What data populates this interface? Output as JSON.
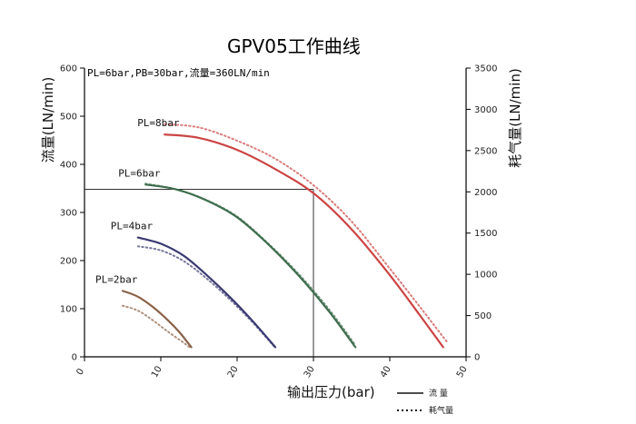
{
  "chart_data": {
    "type": "line",
    "title": "GPV05工作曲线",
    "annotation": {
      "text": "PL=6bar,PB=30bar,流量=360LN/min",
      "x": 30,
      "y": 348
    },
    "xlabel": "输出压力(bar)",
    "ylabel_left": "流量(LN/min)",
    "ylabel_right": "耗气量(LN/min)",
    "xlim": [
      0,
      50
    ],
    "ylim_left": [
      0,
      600
    ],
    "ylim_right": [
      0,
      3500
    ],
    "x_ticks": [
      0,
      10,
      20,
      30,
      40,
      50
    ],
    "y_ticks_left": [
      0,
      100,
      200,
      300,
      400,
      500,
      600
    ],
    "y_ticks_right": [
      0,
      500,
      1000,
      1500,
      2000,
      2500,
      3000,
      3500
    ],
    "legend": {
      "position": "bottom-right",
      "entries": [
        {
          "label": "流 量",
          "style": "solid"
        },
        {
          "label": "耗气量",
          "style": "dotted"
        }
      ]
    },
    "series": [
      {
        "name": "PL=2bar",
        "color": "#8a6248",
        "flow": {
          "x": [
            5,
            7,
            9,
            11,
            12.5,
            14
          ],
          "y": [
            137,
            125,
            103,
            75,
            50,
            20
          ]
        },
        "consumption": {
          "x": [
            5,
            7,
            9,
            11,
            13,
            14
          ],
          "y": [
            620,
            560,
            440,
            300,
            170,
            100
          ]
        }
      },
      {
        "name": "PL=4bar",
        "color": "#3a3a72",
        "flow": {
          "x": [
            7,
            10,
            13,
            16,
            19,
            22,
            25
          ],
          "y": [
            248,
            235,
            210,
            170,
            125,
            75,
            20
          ]
        },
        "consumption": {
          "x": [
            7,
            10,
            13,
            16,
            19,
            22,
            25
          ],
          "y": [
            1340,
            1290,
            1160,
            950,
            700,
            420,
            110
          ]
        }
      },
      {
        "name": "PL=6bar",
        "color": "#3f6e4e",
        "flow": {
          "x": [
            8,
            12,
            16,
            20,
            24,
            28,
            32,
            35.5
          ],
          "y": [
            358,
            348,
            325,
            290,
            235,
            170,
            95,
            20
          ]
        },
        "consumption": {
          "x": [
            8,
            12,
            16,
            20,
            24,
            28,
            32,
            35.5
          ],
          "y": [
            2100,
            2030,
            1900,
            1700,
            1380,
            1010,
            580,
            140
          ]
        }
      },
      {
        "name": "PL=8bar",
        "color": "#cc4444",
        "flow": {
          "x": [
            10.5,
            15,
            20,
            25,
            30,
            35,
            40,
            44,
            47
          ],
          "y": [
            462,
            455,
            430,
            390,
            340,
            265,
            170,
            85,
            20
          ]
        },
        "consumption": {
          "x": [
            10.5,
            15,
            20,
            25,
            30,
            35,
            40,
            44,
            47.5
          ],
          "y": [
            2820,
            2780,
            2620,
            2400,
            2080,
            1640,
            1070,
            600,
            180
          ]
        }
      }
    ]
  }
}
